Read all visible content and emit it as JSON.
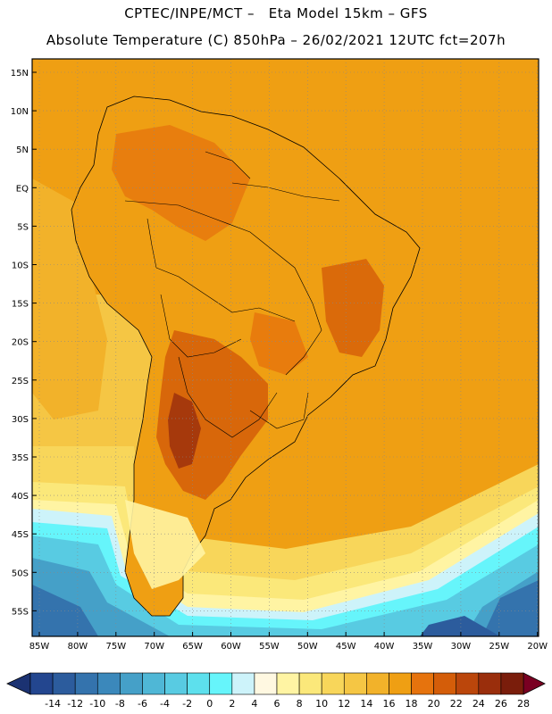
{
  "header": {
    "line1": "CPTEC/INPE/MCT –   Eta Model 15km – GFS",
    "line2": "Absolute Temperature (C) 850hPa – 26/02/2021 12UTC fct=207h"
  },
  "map": {
    "region": "South America",
    "lat_labels": [
      "15N",
      "10N",
      "5N",
      "EQ",
      "5S",
      "10S",
      "15S",
      "20S",
      "25S",
      "30S",
      "35S",
      "40S",
      "45S",
      "50S",
      "55S"
    ],
    "lon_labels": [
      "85W",
      "80W",
      "75W",
      "70W",
      "65W",
      "60W",
      "55W",
      "50W",
      "45W",
      "40W",
      "35W",
      "30W",
      "25W",
      "20W"
    ]
  },
  "colorbar": {
    "labels": [
      "-14",
      "-12",
      "-10",
      "-8",
      "-6",
      "-4",
      "-2",
      "0",
      "2",
      "4",
      "6",
      "8",
      "10",
      "12",
      "14",
      "16",
      "18",
      "20",
      "22",
      "24",
      "26",
      "28"
    ],
    "colors": [
      "#23468f",
      "#2c5c9d",
      "#3473ad",
      "#3b88bb",
      "#45a0c8",
      "#4fb7d6",
      "#58cbe2",
      "#5de0ed",
      "#66f5fb",
      "#cdf3fa",
      "#fff8e1",
      "#fff4a3",
      "#fbe87a",
      "#f8d65a",
      "#f5c644",
      "#f2b22a",
      "#ef9f13",
      "#e6730d",
      "#d45d09",
      "#bb460b",
      "#9a2e0c",
      "#7a1d0b"
    ],
    "low_arrow_color": "#1b3272",
    "high_arrow_color": "#7a0022"
  }
}
